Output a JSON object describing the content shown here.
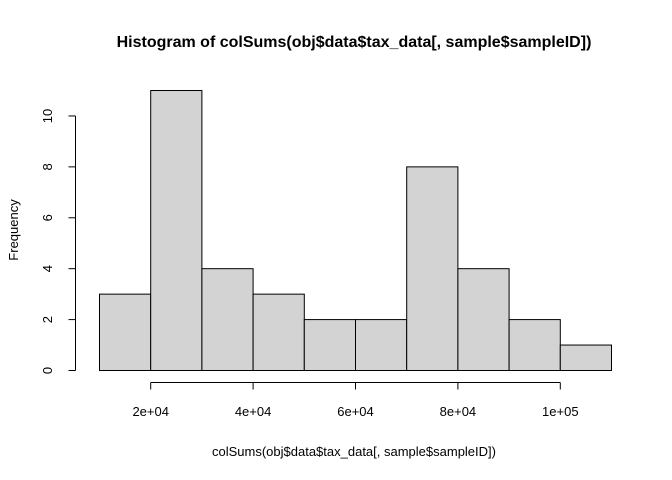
{
  "chart_data": {
    "type": "bar",
    "title": "Histogram of colSums(obj$data$tax_data[, sample$sampleID])",
    "xlabel": "colSums(obj$data$tax_data[, sample$sampleID])",
    "ylabel": "Frequency",
    "bin_edges": [
      10000,
      20000,
      30000,
      40000,
      50000,
      60000,
      70000,
      80000,
      90000,
      100000,
      110000
    ],
    "values": [
      3,
      11,
      4,
      3,
      2,
      2,
      8,
      4,
      2,
      1
    ],
    "xlim": [
      10000,
      110000
    ],
    "ylim": [
      0,
      11
    ],
    "x_ticks": [
      20000,
      40000,
      60000,
      80000,
      100000
    ],
    "x_tick_labels": [
      "2e+04",
      "4e+04",
      "6e+04",
      "8e+04",
      "1e+05"
    ],
    "y_ticks": [
      0,
      2,
      4,
      6,
      8,
      10
    ],
    "y_tick_labels": [
      "0",
      "2",
      "4",
      "6",
      "8",
      "10"
    ],
    "bar_fill": "#d3d3d3",
    "bar_stroke": "#000000",
    "grid": false
  }
}
